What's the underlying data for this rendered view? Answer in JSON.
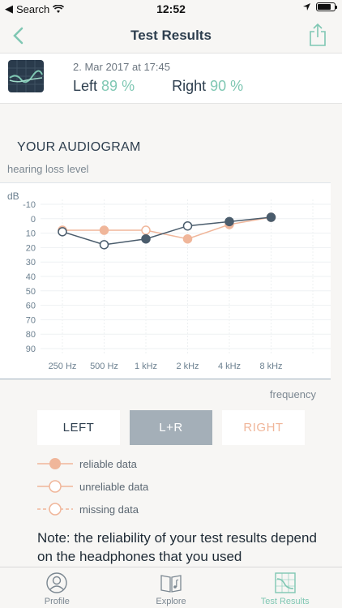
{
  "status": {
    "carrier": "Search",
    "time": "12:52"
  },
  "nav": {
    "title": "Test Results"
  },
  "summary": {
    "date": "2. Mar 2017 at 17:45",
    "left_label": "Left",
    "left_value": "89 %",
    "right_label": "Right",
    "right_value": "90 %"
  },
  "audiogram": {
    "title": "YOUR AUDIOGRAM",
    "subtitle": "hearing loss level",
    "frequency_label": "frequency"
  },
  "chart_data": {
    "type": "line",
    "ylabel": "dB",
    "xlabel": "frequency",
    "categories": [
      "250 Hz",
      "500 Hz",
      "1 kHz",
      "2 kHz",
      "4 kHz",
      "8 kHz"
    ],
    "yticks": [
      -10,
      0,
      10,
      20,
      30,
      40,
      50,
      60,
      70,
      80,
      90
    ],
    "ylim": [
      -10,
      90
    ],
    "y_inverted": true,
    "series": [
      {
        "name": "LEFT",
        "color": "#4a5c6c",
        "values": [
          9,
          18,
          14,
          5,
          2,
          -1
        ],
        "reliable": [
          false,
          false,
          true,
          false,
          true,
          true
        ]
      },
      {
        "name": "RIGHT",
        "color": "#f0b69a",
        "values": [
          8,
          8,
          8,
          14,
          4,
          -1
        ],
        "reliable": [
          true,
          true,
          false,
          true,
          true,
          true
        ]
      }
    ]
  },
  "segments": {
    "left": "LEFT",
    "both": "L+R",
    "right": "RIGHT"
  },
  "legend": {
    "reliable": "reliable data",
    "unreliable": "unreliable data",
    "missing": "missing data"
  },
  "note": "Note: the reliability of your test results depend on the headphones that you used",
  "tabs": {
    "profile": "Profile",
    "explore": "Explore",
    "results": "Test Results"
  },
  "colors": {
    "accent": "#7fc7b3",
    "left": "#4a5c6c",
    "right": "#f0b69a"
  }
}
